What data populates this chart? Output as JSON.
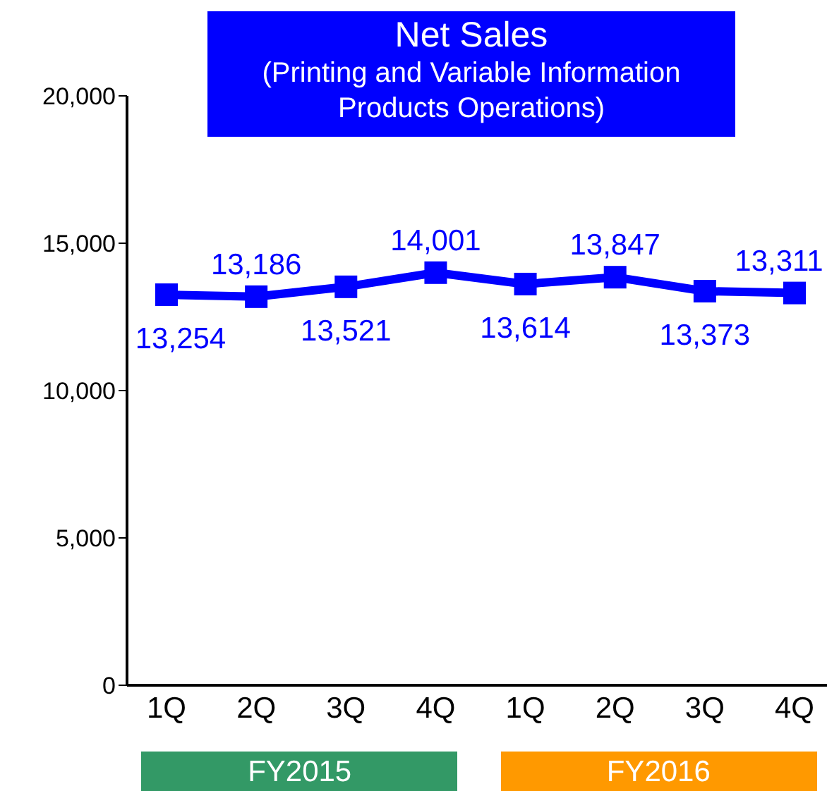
{
  "chart_data": {
    "type": "line",
    "title": "Net Sales",
    "subtitle": "(Printing and Variable Information Products Operations)",
    "categories": [
      "1Q",
      "2Q",
      "3Q",
      "4Q",
      "1Q",
      "2Q",
      "3Q",
      "4Q"
    ],
    "series": [
      {
        "color": "#0000ff",
        "values": [
          13254,
          13186,
          13521,
          14001,
          13614,
          13847,
          13373,
          13311
        ],
        "value_labels": [
          "13,254",
          "13,186",
          "13,521",
          "14,001",
          "13,614",
          "13,847",
          "13,373",
          "13,311"
        ]
      }
    ],
    "ylim": [
      0,
      20000
    ],
    "yticks": [
      {
        "value": 0,
        "label": "0"
      },
      {
        "value": 5000,
        "label": "5,000"
      },
      {
        "value": 10000,
        "label": "10,000"
      },
      {
        "value": 15000,
        "label": "15,000"
      },
      {
        "value": 20000,
        "label": "20,000"
      }
    ],
    "annotations": [
      "FY2015",
      "FY2016"
    ],
    "grid": false,
    "legend": false,
    "marker": "square",
    "line_style": "solid"
  }
}
